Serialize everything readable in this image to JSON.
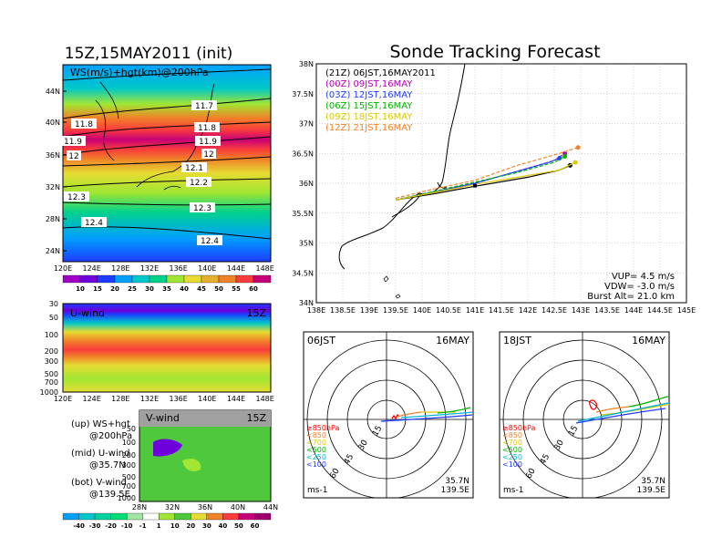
{
  "left_panel": {
    "title": "15Z,15MAY2011 (init)",
    "ws_map_label": "WS(m/s)+hgt(km)@200hPa",
    "lat_ticks": [
      "44N",
      "40N",
      "36N",
      "32N",
      "28N",
      "24N"
    ],
    "lon_ticks": [
      "120E",
      "124E",
      "128E",
      "132E",
      "136E",
      "140E",
      "144E",
      "148E"
    ],
    "contours": [
      "11.7",
      "11.8",
      "11.8",
      "11.9",
      "11.9",
      "12",
      "12",
      "12.1",
      "12.2",
      "12.3",
      "12.3",
      "12.4",
      "12.4"
    ],
    "ws_colorbar": [
      "10",
      "15",
      "20",
      "25",
      "30",
      "35",
      "40",
      "45",
      "50",
      "55",
      "60"
    ],
    "ws_colors": [
      "#a000c8",
      "#6e00dc",
      "#1e3cff",
      "#00a0ff",
      "#00c8c8",
      "#00d28c",
      "#a0e632",
      "#e6dc32",
      "#e6af2d",
      "#f08228",
      "#fa3c3c",
      "#c80078"
    ],
    "u_wind_label": "U-wind",
    "u_wind_time": "15Z",
    "p_ticks": [
      "30",
      "50",
      "100",
      "200",
      "300",
      "500",
      "700",
      "1000"
    ],
    "v_wind_label": "V-wind",
    "v_wind_time": "15Z",
    "v_lat_ticks": [
      "28N",
      "32N",
      "36N",
      "40N",
      "44N"
    ],
    "legend_up": "(up) WS+hgt",
    "legend_up2": "@200hPa",
    "legend_mid": "(mid) U-wind",
    "legend_mid2": "@35.7N",
    "legend_bot": "(bot) V-wind",
    "legend_bot2": "@139.5E",
    "v_colorbar": [
      "-40",
      "-30",
      "-20",
      "-10",
      "-1",
      "1",
      "10",
      "20",
      "30",
      "40",
      "50",
      "60"
    ],
    "v_colors": [
      "#00a0ff",
      "#00c8c8",
      "#00d2a0",
      "#00dc78",
      "#a0e6a0",
      "#ffffff",
      "#a0e632",
      "#50c83c",
      "#e6dc32",
      "#f08228",
      "#fa3c3c",
      "#c80078",
      "#a0006e"
    ]
  },
  "right_panel": {
    "title": "Sonde Tracking Forecast",
    "lat_ticks": [
      "38N",
      "37.5N",
      "37N",
      "36.5N",
      "36N",
      "35.5N",
      "35N",
      "34.5N",
      "34N"
    ],
    "lon_ticks": [
      "138E",
      "138.5E",
      "139E",
      "139.5E",
      "140E",
      "140.5E",
      "141E",
      "141.5E",
      "142E",
      "142.5E",
      "143E",
      "143.5E",
      "144E",
      "144.5E",
      "145E"
    ],
    "legend": [
      {
        "label": "(21Z)  06JST,16MAY2011",
        "color": "#000000"
      },
      {
        "label": "(00Z)  09JST,16MAY",
        "color": "#b400b4"
      },
      {
        "label": "(03Z)  12JST,16MAY",
        "color": "#1e3cff"
      },
      {
        "label": "(06Z)  15JST,16MAY",
        "color": "#00b400"
      },
      {
        "label": "(09Z)  18JST,16MAY",
        "color": "#dcc800"
      },
      {
        "label": "(12Z)  21JST,16MAY",
        "color": "#f08228"
      }
    ],
    "vup": "VUP= 4.5 m/s",
    "vdw": "VDW= -3.0 m/s",
    "burst": "Burst Alt= 21.0 km"
  },
  "chart_data": [
    {
      "type": "line",
      "title": "Sonde Tracking Forecast",
      "xlim": [
        138,
        145
      ],
      "ylim": [
        34,
        38
      ],
      "series": [
        {
          "name": "(21Z)  06JST,16MAY2011",
          "x": [
            139.5,
            140.2,
            141.0,
            142.0,
            142.6,
            142.8
          ],
          "y": [
            35.72,
            35.82,
            35.95,
            36.1,
            36.22,
            36.3
          ]
        },
        {
          "name": "(00Z)  09JST,16MAY",
          "x": [
            139.5,
            140.2,
            141.0,
            141.8,
            142.5,
            142.7
          ],
          "y": [
            35.72,
            35.85,
            36.0,
            36.2,
            36.38,
            36.5
          ]
        },
        {
          "name": "(03Z)  12JST,16MAY",
          "x": [
            139.5,
            140.2,
            141.0,
            141.8,
            142.4,
            142.6
          ],
          "y": [
            35.72,
            35.85,
            36.0,
            36.2,
            36.35,
            36.42
          ]
        },
        {
          "name": "(06Z)  15JST,16MAY",
          "x": [
            139.5,
            140.2,
            141.0,
            141.8,
            142.5,
            142.7
          ],
          "y": [
            35.72,
            35.86,
            36.02,
            36.18,
            36.35,
            36.45
          ]
        },
        {
          "name": "(09Z)  18JST,16MAY",
          "x": [
            139.5,
            140.2,
            141.0,
            141.8,
            142.6,
            142.9
          ],
          "y": [
            35.72,
            35.84,
            35.98,
            36.1,
            36.22,
            36.35
          ]
        },
        {
          "name": "(12Z)  21JST,16MAY",
          "x": [
            139.5,
            140.2,
            141.0,
            141.8,
            142.6,
            142.95
          ],
          "y": [
            35.75,
            35.9,
            36.05,
            36.3,
            36.5,
            36.6
          ]
        }
      ]
    }
  ],
  "polar_left": {
    "time": "06JST",
    "date": "16MAY",
    "rings": [
      "15",
      "30",
      "45",
      "60"
    ],
    "levels": [
      "≥850hPa",
      "<850",
      "<700",
      "<500",
      "<250",
      "<100"
    ],
    "level_colors": [
      "#ff0000",
      "#f08228",
      "#dcc800",
      "#00b400",
      "#00b4dc",
      "#1e3cff"
    ],
    "loc_lat": "35.7N",
    "loc_lon": "139.5E",
    "unit": "ms-1"
  },
  "polar_right": {
    "time": "18JST",
    "date": "16MAY",
    "rings": [
      "15",
      "30",
      "45",
      "60"
    ],
    "levels": [
      "≥850hPa",
      "<850",
      "<700",
      "<500",
      "<250",
      "<100"
    ],
    "level_colors": [
      "#ff0000",
      "#f08228",
      "#dcc800",
      "#00b400",
      "#00b4dc",
      "#1e3cff"
    ],
    "loc_lat": "35.7N",
    "loc_lon": "139.5E",
    "unit": "ms-1"
  }
}
